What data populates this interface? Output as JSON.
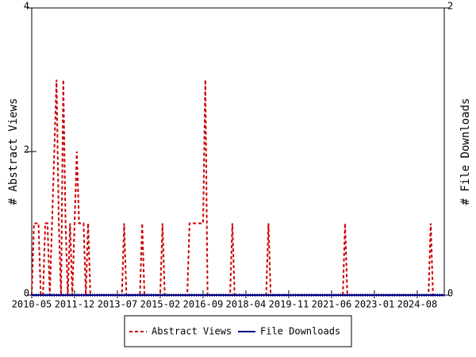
{
  "chart_data": {
    "type": "line",
    "categories": [
      "2010-05",
      null,
      null,
      null,
      null,
      null,
      null,
      null,
      null,
      null,
      null,
      null,
      null,
      null,
      null,
      null,
      null,
      null,
      null,
      "2011-12",
      null,
      null,
      null,
      null,
      null,
      null,
      null,
      null,
      null,
      null,
      null,
      null,
      null,
      null,
      null,
      null,
      null,
      null,
      "2013-07",
      null,
      null,
      null,
      null,
      null,
      null,
      null,
      null,
      null,
      null,
      null,
      null,
      null,
      null,
      null,
      null,
      null,
      null,
      "2015-02",
      null,
      null,
      null,
      null,
      null,
      null,
      null,
      null,
      null,
      null,
      null,
      null,
      null,
      null,
      null,
      null,
      null,
      null,
      "2016-09",
      null,
      null,
      null,
      null,
      null,
      null,
      null,
      null,
      null,
      null,
      null,
      null,
      null,
      null,
      null,
      null,
      null,
      null,
      "2018-04",
      null,
      null,
      null,
      null,
      null,
      null,
      null,
      null,
      null,
      null,
      null,
      null,
      null,
      null,
      null,
      null,
      null,
      null,
      "2019-11",
      null,
      null,
      null,
      null,
      null,
      null,
      null,
      null,
      null,
      null,
      null,
      null,
      null,
      null,
      null,
      null,
      null,
      null,
      "2021-06",
      null,
      null,
      null,
      null,
      null,
      null,
      null,
      null,
      null,
      null,
      null,
      null,
      null,
      null,
      null,
      null,
      null,
      null,
      "2023-01",
      null,
      null,
      null,
      null,
      null,
      null,
      null,
      null,
      null,
      null,
      null,
      null,
      null,
      null,
      null,
      null,
      null,
      null,
      "2024-08",
      null,
      null,
      null,
      null,
      null,
      null,
      null,
      null,
      null,
      null,
      null,
      null
    ],
    "series": [
      {
        "name": "Abstract Views",
        "color": "#cc0000",
        "dash": true,
        "axis": "y",
        "values": [
          0,
          1,
          1,
          1,
          0,
          0,
          1,
          1,
          0,
          1,
          2,
          3,
          1,
          0,
          3,
          1,
          0,
          1,
          0,
          1,
          2,
          1,
          1,
          1,
          0,
          1,
          0,
          0,
          0,
          0,
          0,
          0,
          0,
          0,
          0,
          0,
          0,
          0,
          0,
          0,
          0,
          1,
          0,
          0,
          0,
          0,
          0,
          0,
          0,
          1,
          0,
          0,
          0,
          0,
          0,
          0,
          0,
          0,
          1,
          0,
          0,
          0,
          0,
          0,
          0,
          0,
          0,
          0,
          0,
          0,
          1,
          1,
          1,
          1,
          1,
          1,
          1,
          3,
          0,
          0,
          0,
          0,
          0,
          0,
          0,
          0,
          0,
          0,
          0,
          1,
          0,
          0,
          0,
          0,
          0,
          0,
          0,
          0,
          0,
          0,
          0,
          0,
          0,
          0,
          0,
          1,
          0,
          0,
          0,
          0,
          0,
          0,
          0,
          0,
          0,
          0,
          0,
          0,
          0,
          0,
          0,
          0,
          0,
          0,
          0,
          0,
          0,
          0,
          0,
          0,
          0,
          0,
          0,
          0,
          0,
          0,
          0,
          0,
          0,
          1,
          0,
          0,
          0,
          0,
          0,
          0,
          0,
          0,
          0,
          0,
          0,
          0,
          0,
          0,
          0,
          0,
          0,
          0,
          0,
          0,
          0,
          0,
          0,
          0,
          0,
          0,
          0,
          0,
          0,
          0,
          0,
          0,
          0,
          0,
          0,
          0,
          0,
          1,
          0,
          0,
          0,
          0,
          0,
          0
        ]
      },
      {
        "name": "File Downloads",
        "color": "#000080",
        "dash": false,
        "axis": "y2",
        "values": [
          0,
          0,
          0,
          0,
          0,
          0,
          0,
          0,
          0,
          0,
          0,
          0,
          0,
          0,
          0,
          0,
          0,
          0,
          0,
          0,
          0,
          0,
          0,
          0,
          0,
          0,
          0,
          0,
          0,
          0,
          0,
          0,
          0,
          0,
          0,
          0,
          0,
          0,
          0,
          0,
          0,
          0,
          0,
          0,
          0,
          0,
          0,
          0,
          0,
          0,
          0,
          0,
          0,
          0,
          0,
          0,
          0,
          0,
          0,
          0,
          0,
          0,
          0,
          0,
          0,
          0,
          0,
          0,
          0,
          0,
          0,
          0,
          0,
          0,
          0,
          0,
          0,
          0,
          0,
          0,
          0,
          0,
          0,
          0,
          0,
          0,
          0,
          0,
          0,
          0,
          0,
          0,
          0,
          0,
          0,
          0,
          0,
          0,
          0,
          0,
          0,
          0,
          0,
          0,
          0,
          0,
          0,
          0,
          0,
          0,
          0,
          0,
          0,
          0,
          0,
          0,
          0,
          0,
          0,
          0,
          0,
          0,
          0,
          0,
          0,
          0,
          0,
          0,
          0,
          0,
          0,
          0,
          0,
          0,
          0,
          0,
          0,
          0,
          0,
          0,
          0,
          0,
          0,
          0,
          0,
          0,
          0,
          0,
          0,
          0,
          0,
          0,
          0,
          0,
          0,
          0,
          0,
          0,
          0,
          0,
          0,
          0,
          0,
          0,
          0,
          0,
          0,
          0,
          0,
          0,
          0,
          0,
          0,
          0,
          0,
          0,
          0,
          0,
          0,
          0,
          0,
          0,
          0,
          0
        ]
      }
    ],
    "ylabel": "# Abstract Views",
    "y2label": "# File Downloads",
    "ylim": [
      0,
      4
    ],
    "yticks": [
      0,
      2,
      4
    ],
    "y2lim": [
      0,
      2
    ],
    "y2ticks": [
      0,
      2
    ],
    "legend": "bottom"
  }
}
